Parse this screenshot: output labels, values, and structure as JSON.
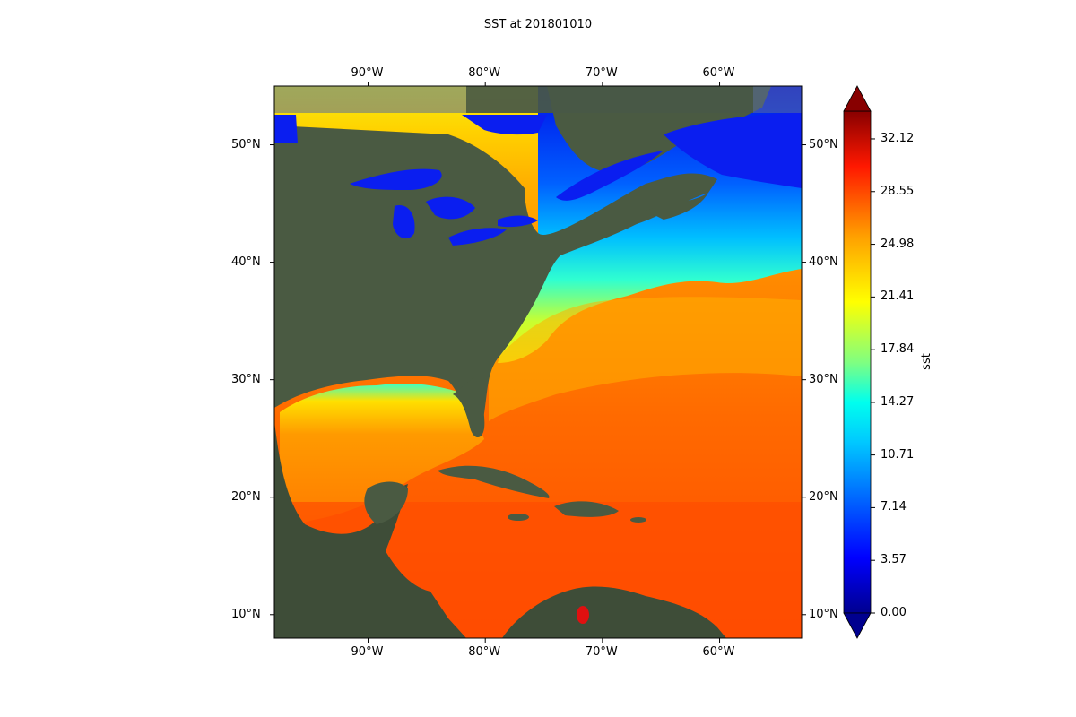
{
  "title": "SST at 201801010",
  "map": {
    "lon_range": [
      -98,
      -53
    ],
    "lat_range": [
      8,
      55
    ],
    "lon_ticks": [
      {
        "value": -90,
        "label": "90°W"
      },
      {
        "value": -80,
        "label": "80°W"
      },
      {
        "value": -70,
        "label": "70°W"
      },
      {
        "value": -60,
        "label": "60°W"
      }
    ],
    "lat_ticks": [
      {
        "value": 10,
        "label": "10°N"
      },
      {
        "value": 20,
        "label": "20°N"
      },
      {
        "value": 30,
        "label": "30°N"
      },
      {
        "value": 40,
        "label": "40°N"
      },
      {
        "value": 50,
        "label": "50°N"
      }
    ],
    "basemap": "satellite-imagery",
    "field": "sea-surface-temperature",
    "colormap": "jet"
  },
  "colorbar": {
    "label": "sst",
    "vmin": 0.0,
    "vmax": 34.0,
    "ticks": [
      {
        "value": 0.0,
        "label": "0.00"
      },
      {
        "value": 3.57,
        "label": "3.57"
      },
      {
        "value": 7.14,
        "label": "7.14"
      },
      {
        "value": 10.71,
        "label": "10.71"
      },
      {
        "value": 14.27,
        "label": "14.27"
      },
      {
        "value": 17.84,
        "label": "17.84"
      },
      {
        "value": 21.41,
        "label": "21.41"
      },
      {
        "value": 24.98,
        "label": "24.98"
      },
      {
        "value": 28.55,
        "label": "28.55"
      },
      {
        "value": 32.12,
        "label": "32.12"
      }
    ],
    "extend": "both"
  },
  "colors": {
    "land": "#4a5a42",
    "land_dark": "#3e4d38",
    "lake_blue": "#0a1ef0",
    "border_ocean": "#5a6e9a"
  }
}
